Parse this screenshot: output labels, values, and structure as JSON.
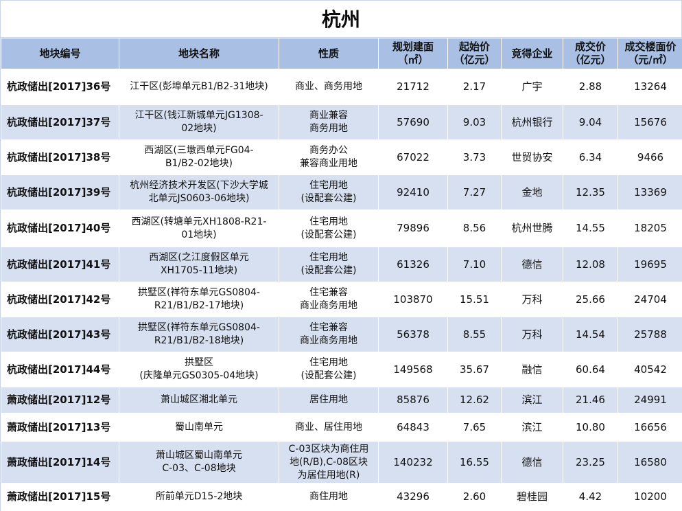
{
  "title": "杭州",
  "headers": [
    "地块编号",
    "地块名称",
    "性质",
    "规划建面\n（㎡）",
    "起始价\n（亿元）",
    "竞得企业",
    "成交价\n（亿元）",
    "成交楼面价\n（元/㎡）"
  ],
  "rows": [
    {
      "code": "杭政储出[2017]36号",
      "name": "江干区(彭埠单元B1/B2-31地块)",
      "use": "商业、商务用地",
      "area": "21712",
      "start": "2.17",
      "winner": "广宇",
      "deal": "2.88",
      "floor": "13264"
    },
    {
      "code": "杭政储出[2017]37号",
      "name": "江干区(钱江新城单元JG1308-\n02地块)",
      "use": "商业兼容\n商务用地",
      "area": "57690",
      "start": "9.03",
      "winner": "杭州银行",
      "deal": "9.04",
      "floor": "15676"
    },
    {
      "code": "杭政储出[2017]38号",
      "name": "西湖区(三墩西单元FG04-\nB1/B2-02地块)",
      "use": "商务办公\n兼容商业用地",
      "area": "67022",
      "start": "3.73",
      "winner": "世贸协安",
      "deal": "6.34",
      "floor": "9466"
    },
    {
      "code": "杭政储出[2017]39号",
      "name": "杭州经济技术开发区(下沙大学城\n北单元JS0603-06地块)",
      "use": "住宅用地\n(设配套公建)",
      "area": "92410",
      "start": "7.27",
      "winner": "金地",
      "deal": "12.35",
      "floor": "13369"
    },
    {
      "code": "杭政储出[2017]40号",
      "name": "西湖区(转塘单元XH1808-R21-\n01地块)",
      "use": "住宅用地\n(设配套公建)",
      "area": "79896",
      "start": "8.56",
      "winner": "杭州世腾",
      "deal": "14.55",
      "floor": "18205"
    },
    {
      "code": "杭政储出[2017]41号",
      "name": "西湖区(之江度假区单元\nXH1705-11地块)",
      "use": "住宅用地\n(设配套公建)",
      "area": "61326",
      "start": "7.10",
      "winner": "德信",
      "deal": "12.08",
      "floor": "19695"
    },
    {
      "code": "杭政储出[2017]42号",
      "name": "拱墅区(祥符东单元GS0804-\nR21/B1/B2-17地块)",
      "use": "住宅兼容\n商业商务用地",
      "area": "103870",
      "start": "15.51",
      "winner": "万科",
      "deal": "25.66",
      "floor": "24704"
    },
    {
      "code": "杭政储出[2017]43号",
      "name": "拱墅区(祥符东单元GS0804-\nR21/B1/B2-18地块)",
      "use": "住宅兼容\n商业商务用地",
      "area": "56378",
      "start": "8.55",
      "winner": "万科",
      "deal": "14.54",
      "floor": "25788"
    },
    {
      "code": "杭政储出[2017]44号",
      "name": "拱墅区\n(庆隆单元GS0305-04地块)",
      "use": "住宅用地\n(设配套公建)",
      "area": "149568",
      "start": "35.67",
      "winner": "融信",
      "deal": "60.64",
      "floor": "40542"
    },
    {
      "code": "萧政储出[2017]12号",
      "name": "萧山城区湘北单元",
      "use": "居住用地",
      "area": "85876",
      "start": "12.62",
      "winner": "滨江",
      "deal": "21.46",
      "floor": "24991"
    },
    {
      "code": "萧政储出[2017]13号",
      "name": "蜀山南单元",
      "use": "商业、居住用地",
      "area": "64843",
      "start": "7.65",
      "winner": "滨江",
      "deal": "10.80",
      "floor": "16656"
    },
    {
      "code": "萧政储出[2017]14号",
      "name": "萧山城区蜀山南单元\nC-03、C-08地块",
      "use": "C-03区块为商住用\n地(R/B),C-08区块\n为居住用地(R)",
      "area": "140232",
      "start": "16.55",
      "winner": "德信",
      "deal": "23.25",
      "floor": "16580"
    },
    {
      "code": "萧政储出[2017]15号",
      "name": "所前单元D15-2地块",
      "use": "商住用地",
      "area": "43296",
      "start": "2.60",
      "winner": "碧桂园",
      "deal": "4.42",
      "floor": "10200"
    }
  ]
}
